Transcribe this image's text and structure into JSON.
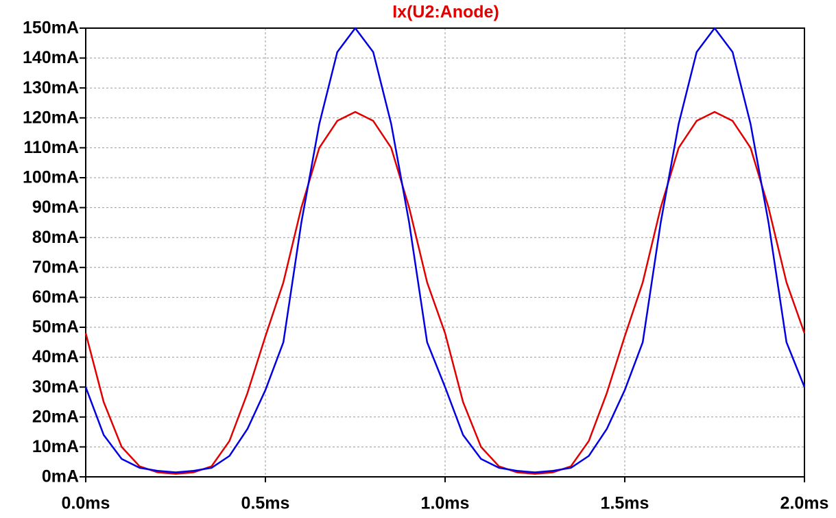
{
  "chart_data": {
    "type": "line",
    "title": "Ix(U2:Anode)",
    "title_color": "#e00000",
    "x": [
      0,
      0.05,
      0.1,
      0.15,
      0.2,
      0.25,
      0.3,
      0.35,
      0.4,
      0.45,
      0.5,
      0.55,
      0.6,
      0.65,
      0.7,
      0.75,
      0.8,
      0.85,
      0.9,
      0.95,
      1.0,
      1.05,
      1.1,
      1.15,
      1.2,
      1.25,
      1.3,
      1.35,
      1.4,
      1.45,
      1.5,
      1.55,
      1.6,
      1.65,
      1.7,
      1.75,
      1.8,
      1.85,
      1.9,
      1.95,
      2.0
    ],
    "series": [
      {
        "color": "#e00000",
        "values": [
          48,
          25,
          10,
          3.5,
          1.5,
          1,
          1.5,
          3.5,
          12,
          28,
          47,
          65,
          90,
          110,
          119,
          122,
          119,
          110,
          90,
          65,
          48,
          25,
          10,
          3.5,
          1.5,
          1,
          1.5,
          3.5,
          12,
          28,
          47,
          65,
          90,
          110,
          119,
          122,
          119,
          110,
          90,
          65,
          48
        ]
      },
      {
        "color": "#0000e0",
        "values": [
          30,
          14,
          6,
          3,
          2,
          1.5,
          2,
          3,
          7,
          16,
          29,
          45,
          85,
          118,
          142,
          150,
          142,
          118,
          85,
          45,
          30,
          14,
          6,
          3,
          2,
          1.5,
          2,
          3,
          7,
          16,
          29,
          45,
          85,
          118,
          142,
          150,
          142,
          118,
          85,
          45,
          30
        ]
      }
    ],
    "xlim": [
      0,
      2
    ],
    "ylim": [
      0,
      150
    ],
    "xticks": [
      {
        "value": 0,
        "label": "0.0ms"
      },
      {
        "value": 0.5,
        "label": "0.5ms"
      },
      {
        "value": 1,
        "label": "1.0ms"
      },
      {
        "value": 1.5,
        "label": "1.5ms"
      },
      {
        "value": 2,
        "label": "2.0ms"
      }
    ],
    "yticks": [
      {
        "value": 0,
        "label": "0mA"
      },
      {
        "value": 10,
        "label": "10mA"
      },
      {
        "value": 20,
        "label": "20mA"
      },
      {
        "value": 30,
        "label": "30mA"
      },
      {
        "value": 40,
        "label": "40mA"
      },
      {
        "value": 50,
        "label": "50mA"
      },
      {
        "value": 60,
        "label": "60mA"
      },
      {
        "value": 70,
        "label": "70mA"
      },
      {
        "value": 80,
        "label": "80mA"
      },
      {
        "value": 90,
        "label": "90mA"
      },
      {
        "value": 100,
        "label": "100mA"
      },
      {
        "value": 110,
        "label": "110mA"
      },
      {
        "value": 120,
        "label": "120mA"
      },
      {
        "value": 130,
        "label": "130mA"
      },
      {
        "value": 140,
        "label": "140mA"
      },
      {
        "value": 150,
        "label": "150mA"
      }
    ],
    "grid": true
  }
}
